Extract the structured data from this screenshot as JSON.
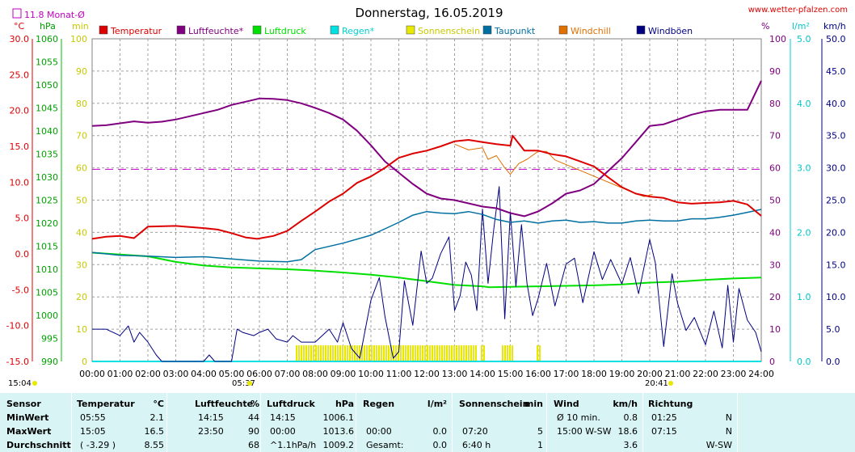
{
  "header": {
    "title": "Donnerstag, 16.05.2019",
    "website": "www.wetter-pfalzen.com",
    "monthly_avg": "11.8 Monat-Ø",
    "units_left": [
      "°C",
      "hPa",
      "min"
    ],
    "units_right": [
      "%",
      "l/m²",
      "km/h"
    ],
    "sunrise": "05:37",
    "sunset": "20:41",
    "time_now": "15:04"
  },
  "colors": {
    "temperature": "#dd0000",
    "humidity": "#800080",
    "pressure": "#00e000",
    "rain": "#00e0e0",
    "sunshine": "#e8e800",
    "dewpoint": "#0070a0",
    "windchill": "#e07000",
    "gusts": "#000080",
    "monthly_avg_line": "#c000c0"
  },
  "chart_data": {
    "type": "line",
    "title": "Donnerstag, 16.05.2019",
    "x_ticks": [
      "00:00",
      "01:00",
      "02:00",
      "03:00",
      "04:00",
      "05:00",
      "06:00",
      "07:00",
      "08:00",
      "09:00",
      "10:00",
      "11:00",
      "12:00",
      "13:00",
      "14:00",
      "15:00",
      "16:00",
      "17:00",
      "18:00",
      "19:00",
      "20:00",
      "21:00",
      "22:00",
      "23:00",
      "24:00"
    ],
    "x_range_hours": [
      0,
      24
    ],
    "grid": true,
    "legend_position": "top",
    "axes": {
      "temperature_c": {
        "range": [
          -15,
          30
        ],
        "ticks": [
          "30.0",
          "25.0",
          "20.0",
          "15.0",
          "10.0",
          "5.0",
          "0.0",
          "-5.0",
          "-10.0",
          "-15.0"
        ]
      },
      "pressure_hpa": {
        "range": [
          990,
          1060
        ],
        "ticks": [
          "1060",
          "1055",
          "1050",
          "1045",
          "1040",
          "1035",
          "1030",
          "1025",
          "1020",
          "1015",
          "1010",
          "1005",
          "1000",
          "995",
          "990"
        ]
      },
      "minutes": {
        "range": [
          0,
          100
        ],
        "ticks": [
          "100",
          "90",
          "80",
          "70",
          "60",
          "50",
          "40",
          "30",
          "20",
          "10",
          "0"
        ]
      },
      "percent": {
        "range": [
          0,
          100
        ],
        "ticks": [
          "100",
          "90",
          "80",
          "70",
          "60",
          "50",
          "40",
          "30",
          "20",
          "10",
          "0"
        ]
      },
      "rain_lm2": {
        "range": [
          0,
          5
        ],
        "ticks": [
          "5.0",
          "4.0",
          "3.0",
          "2.0",
          "1.0",
          "0.0"
        ]
      },
      "wind_kmh": {
        "range": [
          0,
          50
        ],
        "ticks": [
          "50.0",
          "45.0",
          "40.0",
          "35.0",
          "30.0",
          "25.0",
          "20.0",
          "15.0",
          "10.0",
          "5.0",
          "0.0"
        ]
      }
    },
    "monthly_avg_temp_c": 11.8,
    "series": [
      {
        "name": "Temperatur",
        "axis": "temperature_c",
        "x": [
          0,
          0.5,
          1,
          1.5,
          2,
          3,
          4,
          4.5,
          5,
          5.5,
          5.92,
          6.5,
          7,
          7.5,
          8,
          8.5,
          9,
          9.5,
          10,
          10.5,
          11,
          11.5,
          12,
          12.5,
          13,
          13.5,
          14,
          14.5,
          15,
          15.08,
          15.5,
          16,
          16.5,
          17,
          17.5,
          18,
          18.5,
          19,
          19.5,
          20,
          20.5,
          21,
          21.5,
          22,
          22.5,
          23,
          23.5,
          24
        ],
        "y": [
          2.1,
          2.4,
          2.5,
          2.2,
          3.8,
          3.9,
          3.6,
          3.4,
          2.9,
          2.3,
          2.1,
          2.5,
          3.2,
          4.6,
          5.9,
          7.3,
          8.4,
          9.9,
          10.8,
          12.0,
          13.4,
          14.0,
          14.4,
          15.0,
          15.7,
          15.9,
          15.6,
          15.3,
          15.1,
          16.5,
          14.4,
          14.4,
          13.9,
          13.6,
          12.9,
          12.2,
          10.7,
          9.3,
          8.4,
          8.0,
          7.8,
          7.2,
          7.0,
          7.1,
          7.2,
          7.4,
          6.9,
          5.3
        ]
      },
      {
        "name": "Luftfeuchte*",
        "axis": "percent",
        "x": [
          0,
          0.5,
          1,
          1.5,
          2,
          2.5,
          3,
          3.5,
          4,
          4.5,
          5,
          5.5,
          6,
          6.5,
          7,
          7.5,
          8,
          8.5,
          9,
          9.5,
          10,
          10.5,
          11,
          11.5,
          12,
          12.5,
          13,
          13.5,
          14,
          14.5,
          15,
          15.5,
          16,
          16.5,
          17,
          17.5,
          18,
          18.5,
          19,
          19.5,
          20,
          20.5,
          21,
          21.5,
          22,
          22.5,
          23,
          23.5,
          24
        ],
        "y": [
          73,
          73.2,
          73.8,
          74.4,
          74,
          74.3,
          75,
          76,
          77,
          78,
          79.5,
          80.5,
          81.5,
          81.4,
          81,
          80,
          78.6,
          77,
          75,
          71.5,
          67,
          62,
          58.5,
          55,
          52,
          50.5,
          50,
          49,
          48,
          47.5,
          46,
          45,
          46.5,
          49,
          52,
          53,
          55,
          59,
          63,
          68,
          73,
          73.5,
          75,
          76.5,
          77.5,
          78,
          78,
          78,
          87
        ]
      },
      {
        "name": "Luftdruck",
        "axis": "pressure_hpa",
        "x": [
          0,
          1,
          2,
          3,
          4,
          5,
          6,
          7,
          8,
          9,
          10,
          11,
          12,
          13,
          14,
          14.25,
          15,
          16,
          17,
          18,
          19,
          20,
          21,
          22,
          23,
          24
        ],
        "y": [
          1013.6,
          1013.2,
          1012.8,
          1011.6,
          1010.8,
          1010.4,
          1010.2,
          1010,
          1009.7,
          1009.3,
          1008.8,
          1008.2,
          1007.4,
          1006.6,
          1006.3,
          1006.1,
          1006.2,
          1006.3,
          1006.4,
          1006.5,
          1006.7,
          1007.1,
          1007.3,
          1007.7,
          1008,
          1008.2
        ]
      },
      {
        "name": "Regen*",
        "axis": "rain_lm2",
        "x": [
          0,
          24
        ],
        "y": [
          0,
          0
        ]
      },
      {
        "name": "Sonnenschein",
        "axis": "minutes",
        "intervals_hours": [
          [
            7.3,
            13.75
          ],
          [
            13.95,
            14.05
          ],
          [
            14.7,
            15.1
          ],
          [
            15.95,
            16.05
          ]
        ],
        "bar_height_min": 5
      },
      {
        "name": "Taupunkt",
        "axis": "temperature_c",
        "x": [
          0,
          1,
          2,
          3,
          4,
          5,
          6,
          7,
          7.5,
          8,
          9,
          10,
          10.5,
          11,
          11.5,
          12,
          12.5,
          13,
          13.5,
          14,
          14.5,
          15,
          15.5,
          16,
          16.5,
          17,
          17.5,
          18,
          18.5,
          19,
          19.5,
          20,
          20.5,
          21,
          21.5,
          22,
          22.5,
          23,
          23.5,
          24
        ],
        "y": [
          0.2,
          -0.2,
          -0.3,
          -0.5,
          -0.4,
          -0.7,
          -1.0,
          -1.1,
          -0.8,
          0.6,
          1.5,
          2.6,
          3.5,
          4.4,
          5.4,
          5.9,
          5.7,
          5.6,
          5.9,
          5.5,
          4.8,
          4.4,
          4.6,
          4.3,
          4.6,
          4.7,
          4.4,
          4.5,
          4.3,
          4.3,
          4.6,
          4.7,
          4.6,
          4.6,
          4.9,
          4.9,
          5.1,
          5.4,
          5.8,
          6.2
        ]
      },
      {
        "name": "Windchill",
        "axis": "temperature_c",
        "x": [
          13,
          13.5,
          14,
          14.2,
          14.5,
          14.8,
          15,
          15.3,
          15.6,
          16,
          16.3,
          16.6,
          19.5,
          19.8,
          20.1
        ],
        "y": [
          15.3,
          14.5,
          14.8,
          13.2,
          13.7,
          12.0,
          11.1,
          12.6,
          13.2,
          14.3,
          14.3,
          13.1,
          8.4,
          8.0,
          8.3
        ]
      },
      {
        "name": "Windböen",
        "axis": "wind_kmh",
        "x": [
          0,
          0.5,
          1,
          1.3,
          1.5,
          1.7,
          2,
          2.3,
          2.5,
          3,
          3.5,
          4,
          4.2,
          4.4,
          5,
          5.2,
          5.4,
          5.8,
          6,
          6.3,
          6.6,
          7,
          7.2,
          7.5,
          8,
          8.5,
          8.8,
          9,
          9.3,
          9.6,
          10,
          10.3,
          10.5,
          10.8,
          11,
          11.2,
          11.5,
          11.8,
          12,
          12.2,
          12.5,
          12.8,
          13,
          13.2,
          13.4,
          13.6,
          13.8,
          14,
          14.2,
          14.4,
          14.6,
          14.8,
          15,
          15.2,
          15.4,
          15.6,
          15.8,
          16,
          16.3,
          16.6,
          17,
          17.3,
          17.6,
          18,
          18.3,
          18.6,
          19,
          19.3,
          19.6,
          20,
          20.2,
          20.5,
          20.8,
          21,
          21.3,
          21.6,
          22,
          22.3,
          22.6,
          22.8,
          23,
          23.2,
          23.5,
          23.8,
          24
        ],
        "y": [
          5,
          5,
          4,
          5.5,
          3,
          4.5,
          3,
          1,
          0,
          0,
          0,
          0,
          1,
          0,
          0,
          5,
          4.5,
          4,
          4.5,
          5,
          3.5,
          3,
          4,
          3,
          3,
          5,
          3,
          6,
          2,
          0.5,
          9.5,
          13,
          7,
          0.5,
          1.5,
          12.5,
          5.6,
          17.1,
          12.1,
          12.9,
          16.7,
          19.3,
          7.9,
          10.2,
          15.4,
          13.4,
          7.9,
          23.6,
          12.1,
          20.3,
          27.1,
          6.6,
          23.2,
          11.6,
          21.2,
          12.0,
          7.1,
          9.8,
          15.2,
          8.6,
          15.1,
          16.0,
          9.1,
          17.0,
          12.7,
          15.8,
          12.0,
          16.1,
          10.5,
          18.9,
          15.3,
          2.3,
          13.6,
          9.0,
          4.8,
          6.8,
          2.6,
          7.8,
          2.1,
          11.8,
          3.0,
          11.3,
          6.4,
          4.5,
          1.5
        ]
      }
    ]
  },
  "table": {
    "row_labels": [
      "Sensor",
      "MinWert",
      "MaxWert",
      "Durchschnitt"
    ],
    "columns": [
      {
        "header": "Temperatur",
        "unit": "°C",
        "rows": [
          [
            "05:55",
            "2.1"
          ],
          [
            "15:05",
            "16.5"
          ],
          [
            "( -3.29 )",
            "8.55"
          ]
        ]
      },
      {
        "header": "Luftfeuchte",
        "unit": "%",
        "rows": [
          [
            "14:15",
            "44"
          ],
          [
            "23:50",
            "90"
          ],
          [
            "",
            "68"
          ]
        ]
      },
      {
        "header": "Luftdruck",
        "unit": "hPa",
        "rows": [
          [
            "14:15",
            "1006.1"
          ],
          [
            "00:00",
            "1013.6"
          ],
          [
            "^1.1hPa/h",
            "1009.2"
          ]
        ]
      },
      {
        "header": "Regen",
        "unit": "l/m²",
        "rows": [
          [
            "",
            ""
          ],
          [
            "00:00",
            "0.0"
          ],
          [
            "Gesamt:",
            "0.0"
          ]
        ]
      },
      {
        "header": "Sonnenschein",
        "unit": "min",
        "rows": [
          [
            "",
            ""
          ],
          [
            "07:20",
            "5"
          ],
          [
            "6:40 h",
            "1"
          ]
        ]
      },
      {
        "header": "Wind",
        "unit": "km/h",
        "rows": [
          [
            "Ø 10 min.",
            "0.8"
          ],
          [
            "15:00   W-SW",
            "18.6"
          ],
          [
            "",
            "3.6"
          ]
        ]
      },
      {
        "header": "Richtung",
        "unit": "",
        "rows": [
          [
            "01:25",
            "N"
          ],
          [
            "07:15",
            "N"
          ],
          [
            "",
            "W-SW"
          ]
        ]
      }
    ]
  }
}
